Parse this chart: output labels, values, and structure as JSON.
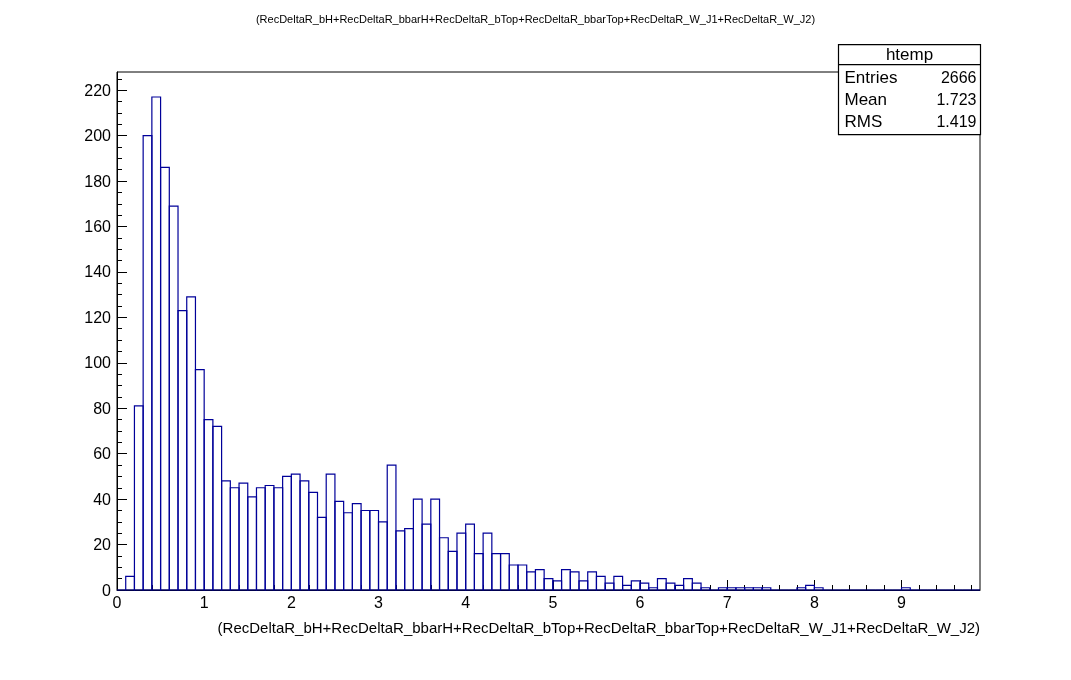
{
  "chart_data": {
    "type": "histogram",
    "title": "(RecDeltaR_bH+RecDeltaR_bbarH+RecDeltaR_bTop+RecDeltaR_bbarTop+RecDeltaR_W_J1+RecDeltaR_W_J2)",
    "xlabel": "(RecDeltaR_bH+RecDeltaR_bbarH+RecDeltaR_bTop+RecDeltaR_bbarTop+RecDeltaR_W_J1+RecDeltaR_W_J2)",
    "bins": [
      0,
      0.1,
      0.2,
      0.3,
      0.4,
      0.5,
      0.6,
      0.7,
      0.8,
      0.9,
      1,
      1.1,
      1.2,
      1.3,
      1.4,
      1.5,
      1.6,
      1.7,
      1.8,
      1.9,
      2,
      2.1,
      2.2,
      2.3,
      2.4,
      2.5,
      2.6,
      2.7,
      2.8,
      2.9,
      3,
      3.1,
      3.2,
      3.3,
      3.4,
      3.5,
      3.6,
      3.7,
      3.8,
      3.9,
      4,
      4.1,
      4.2,
      4.3,
      4.4,
      4.5,
      4.6,
      4.7,
      4.8,
      4.9,
      5,
      5.1,
      5.2,
      5.3,
      5.4,
      5.5,
      5.6,
      5.7,
      5.8,
      5.9,
      6,
      6.1,
      6.2,
      6.3,
      6.4,
      6.5,
      6.6,
      6.7,
      6.8,
      6.9,
      7,
      7.1,
      7.2,
      7.3,
      7.4,
      7.5,
      7.6,
      7.7,
      7.8,
      7.9,
      8,
      8.1,
      8.2,
      8.3,
      8.4,
      8.5,
      8.6,
      8.7,
      8.8,
      8.9,
      9,
      9.1,
      9.2,
      9.3,
      9.4,
      9.5,
      9.6,
      9.7,
      9.8,
      9.9
    ],
    "values": [
      0,
      6,
      81,
      200,
      217,
      186,
      169,
      123,
      129,
      97,
      75,
      72,
      48,
      45,
      47,
      41,
      45,
      46,
      45,
      50,
      51,
      48,
      43,
      32,
      51,
      39,
      34,
      38,
      35,
      35,
      30,
      55,
      26,
      27,
      40,
      29,
      40,
      23,
      17,
      25,
      29,
      16,
      25,
      16,
      16,
      11,
      11,
      8,
      9,
      5,
      4,
      9,
      8,
      4,
      8,
      6,
      3,
      6,
      2,
      4,
      3,
      1,
      5,
      3,
      2,
      5,
      3,
      1,
      0,
      1,
      1,
      1,
      1,
      1,
      1,
      0,
      0,
      0,
      1,
      2,
      1,
      0,
      0,
      0,
      0,
      0,
      0,
      0,
      0,
      0,
      1,
      0,
      0,
      0,
      0,
      0,
      0,
      0,
      0
    ],
    "color": "#000099",
    "xlim": [
      0,
      9.9
    ],
    "xticks": [
      0,
      1,
      2,
      3,
      4,
      5,
      6,
      7,
      8,
      9
    ],
    "ylim": [
      0,
      228
    ],
    "yticks": [
      0,
      20,
      40,
      60,
      80,
      100,
      120,
      140,
      160,
      180,
      200,
      220
    ],
    "annotations": [
      "htemp",
      "Entries",
      "2666",
      "Mean",
      "1.723",
      "RMS",
      "1.419"
    ]
  }
}
